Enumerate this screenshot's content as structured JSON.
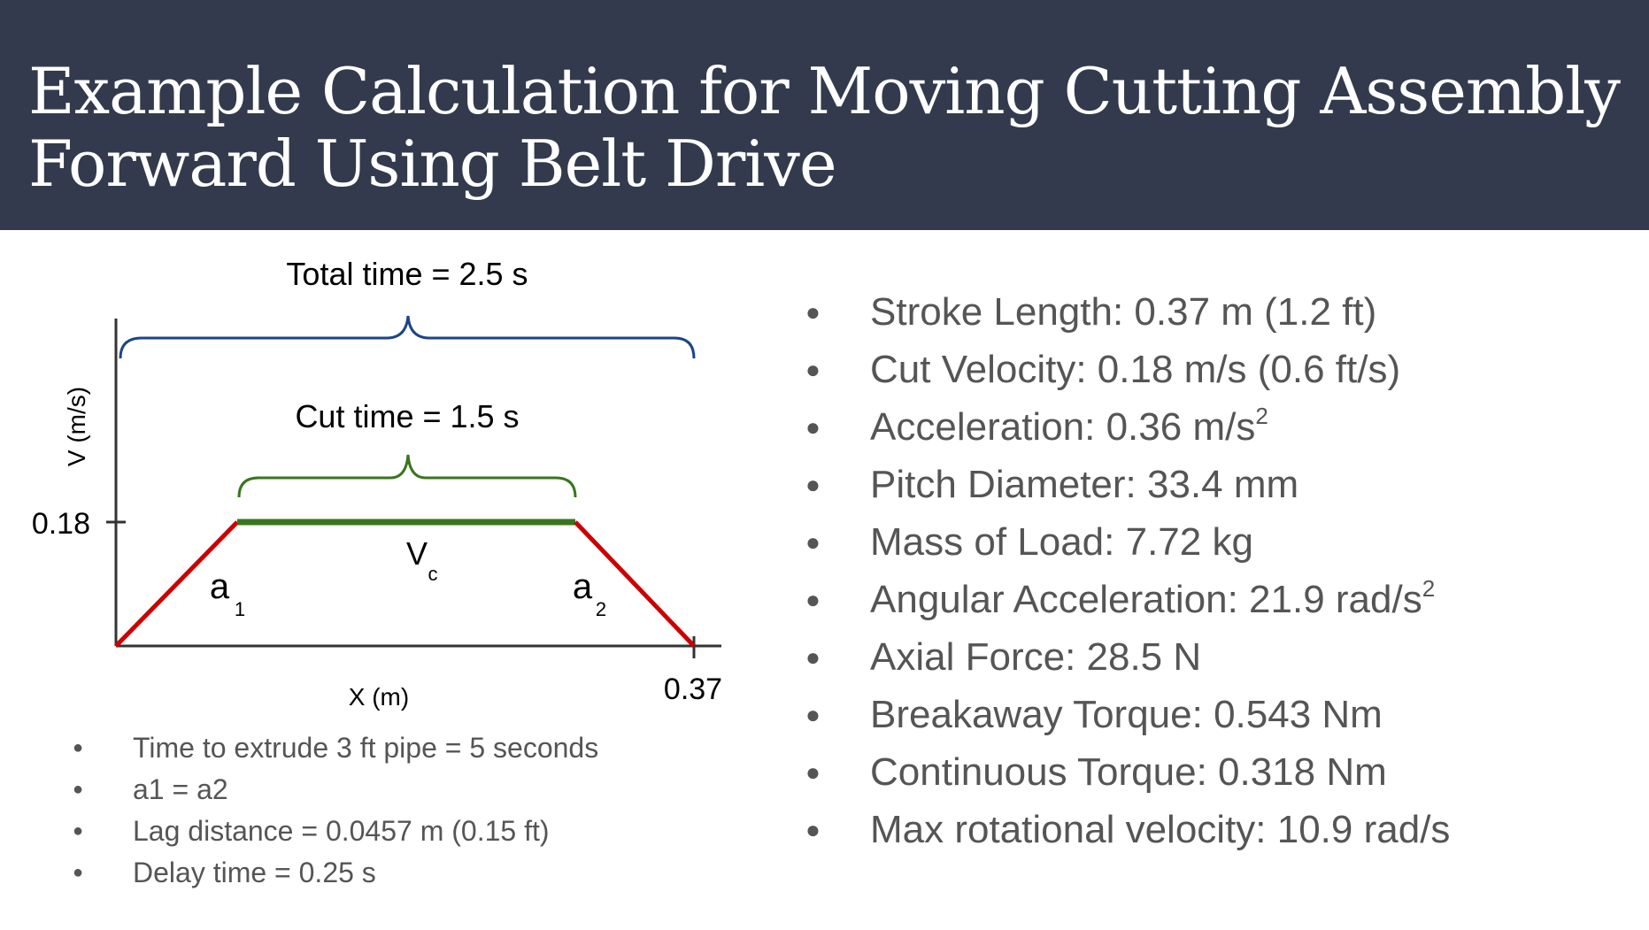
{
  "slide": {
    "title_line1": "Example Calculation for Moving Cutting Assembly",
    "title_line2": "Forward Using Belt Drive"
  },
  "diagram": {
    "total_time_label": "Total time = 2.5 s",
    "cut_time_label": "Cut time = 1.5 s",
    "y_axis_label": "V (m/s)",
    "x_axis_label": "X (m)",
    "y_tick_label": "0.18",
    "x_tick_label": "0.37",
    "vc_label": "V",
    "vc_sub": "c",
    "a1_label": "a",
    "a1_sub": "1",
    "a2_label": "a",
    "a2_sub": "2",
    "colors": {
      "accel": "#cc0000",
      "cut": "#38761d",
      "total_brace": "#1c4587",
      "cut_brace": "#38761d",
      "axis": "#333333"
    }
  },
  "notes": [
    "Time to extrude 3 ft pipe = 5 seconds",
    "a1 = a2",
    "Lag distance = 0.0457 m (0.15 ft)",
    "Delay time = 0.25 s"
  ],
  "specs": [
    {
      "text": "Stroke Length: 0.37 m (1.2 ft)",
      "sup": ""
    },
    {
      "text": "Cut Velocity: 0.18 m/s (0.6 ft/s)",
      "sup": ""
    },
    {
      "text": "Acceleration: 0.36 m/s",
      "sup": "2"
    },
    {
      "text": "Pitch Diameter: 33.4 mm",
      "sup": ""
    },
    {
      "text": "Mass of Load: 7.72 kg",
      "sup": ""
    },
    {
      "text": "Angular Acceleration: 21.9 rad/s",
      "sup": "2"
    },
    {
      "text": "Axial Force: 28.5 N",
      "sup": ""
    },
    {
      "text": "Breakaway Torque: 0.543 Nm",
      "sup": ""
    },
    {
      "text": "Continuous Torque: 0.318 Nm",
      "sup": ""
    },
    {
      "text": "Max rotational velocity: 10.9 rad/s",
      "sup": ""
    }
  ]
}
